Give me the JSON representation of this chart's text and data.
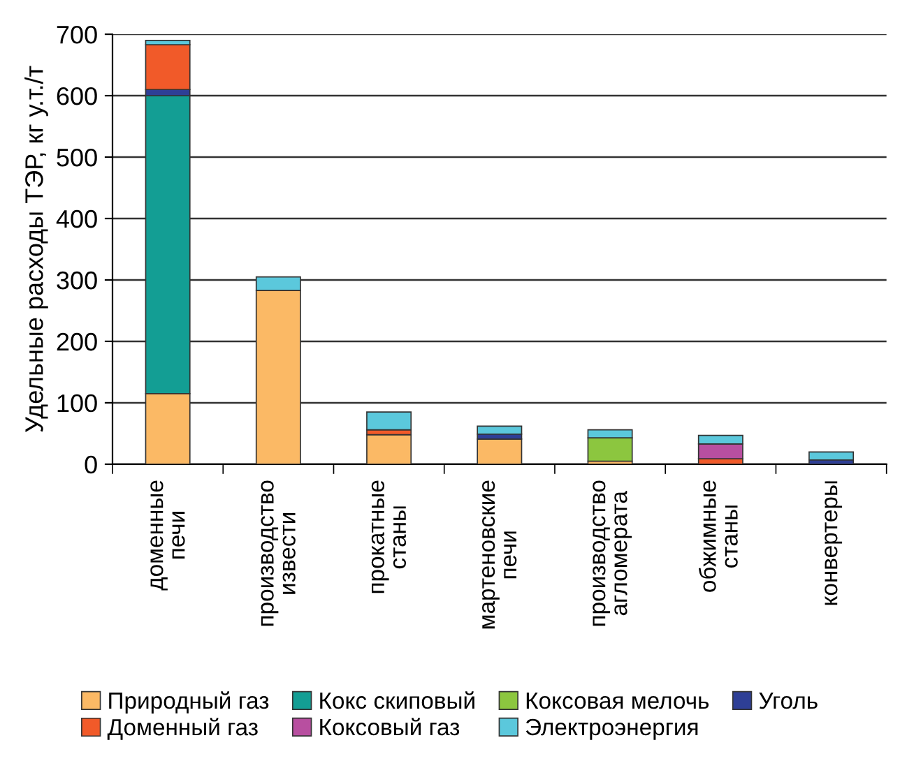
{
  "chart_data": {
    "type": "bar",
    "stacked": true,
    "ylabel": "Удельные расходы ТЭР, кг у.т./т",
    "categories": [
      "доменные\nпечи",
      "производство\nизвести",
      "прокатные\nстаны",
      "мартеновские\nпечи",
      "производство\nагломерата",
      "обжимные\nстаны",
      "конвертеры"
    ],
    "series": [
      {
        "name": "Природный газ",
        "color": "#fbb965",
        "values": [
          115,
          283,
          48,
          41,
          5,
          0,
          0
        ]
      },
      {
        "name": "Кокс скиповый",
        "color": "#139e94",
        "values": [
          485,
          0,
          0,
          0,
          0,
          0,
          0
        ]
      },
      {
        "name": "Коксовая мелочь",
        "color": "#8cc63f",
        "values": [
          0,
          0,
          0,
          0,
          38,
          0,
          0
        ]
      },
      {
        "name": "Уголь",
        "color": "#2e3f96",
        "values": [
          10,
          0,
          0,
          8,
          0,
          0,
          7
        ]
      },
      {
        "name": "Доменный газ",
        "color": "#f15a29",
        "values": [
          73,
          0,
          8,
          0,
          0,
          9,
          0
        ]
      },
      {
        "name": "Коксовый газ",
        "color": "#b84fa0",
        "values": [
          0,
          0,
          0,
          0,
          0,
          24,
          0
        ]
      },
      {
        "name": "Электроэнергия",
        "color": "#5bc8dc",
        "values": [
          7,
          22,
          29,
          13,
          13,
          14,
          13
        ]
      }
    ],
    "ylim": [
      0,
      700
    ],
    "yticks": [
      0,
      100,
      200,
      300,
      400,
      500,
      600,
      700
    ],
    "grid": "y",
    "legend": "bottom"
  }
}
